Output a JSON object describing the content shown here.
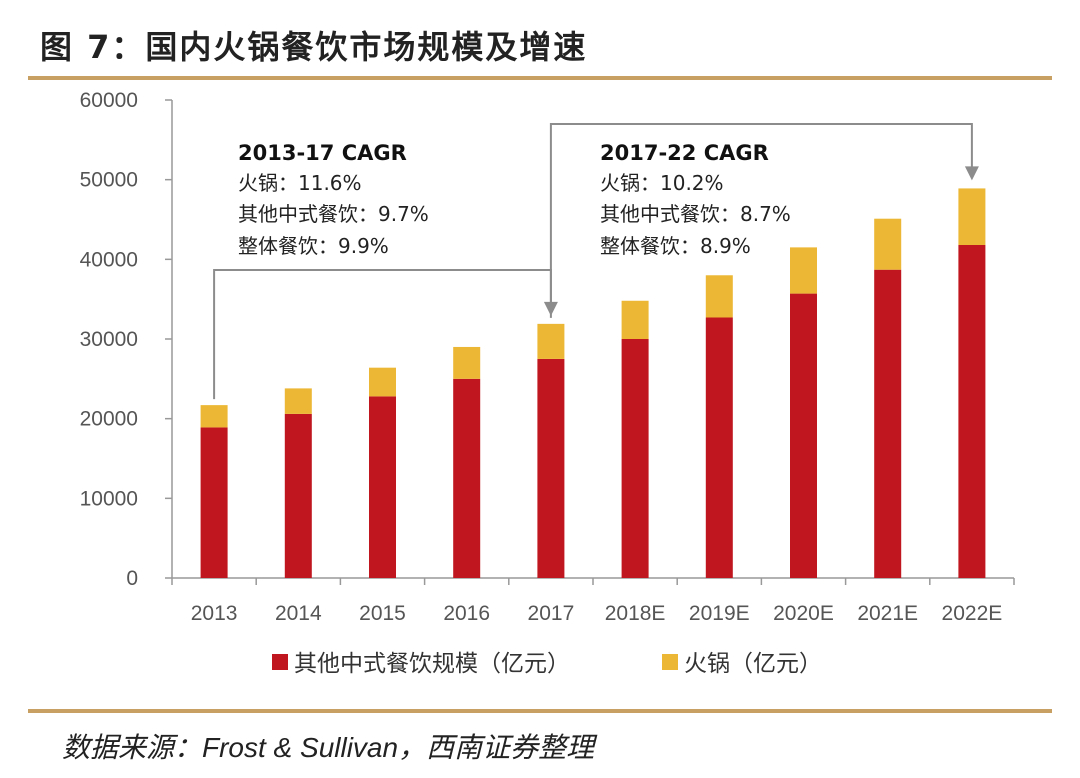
{
  "title": "图 7：国内火锅餐饮市场规模及增速",
  "source": "数据来源：Frost & Sullivan，西南证券整理",
  "colors": {
    "other": "#c0161f",
    "hotpot": "#ecb734",
    "axis": "#999999",
    "rule": "#c8a064",
    "arrow": "#8c8c8c"
  },
  "annotations": [
    {
      "head": "2013-17 CAGR",
      "lines": [
        "火锅：11.6%",
        "其他中式餐饮：9.7%",
        "整体餐饮：9.9%"
      ]
    },
    {
      "head": "2017-22 CAGR",
      "lines": [
        "火锅：10.2%",
        "其他中式餐饮：8.7%",
        "整体餐饮：8.9%"
      ]
    }
  ],
  "chart_data": {
    "type": "bar",
    "stacked": true,
    "categories": [
      "2013",
      "2014",
      "2015",
      "2016",
      "2017",
      "2018E",
      "2019E",
      "2020E",
      "2021E",
      "2022E"
    ],
    "series": [
      {
        "name": "其他中式餐饮规模（亿元）",
        "color": "#c0161f",
        "values": [
          18900,
          20600,
          22800,
          25000,
          27500,
          30000,
          32700,
          35700,
          38700,
          41800
        ]
      },
      {
        "name": "火锅（亿元）",
        "color": "#ecb734",
        "values": [
          2800,
          3200,
          3600,
          4000,
          4400,
          4800,
          5300,
          5800,
          6400,
          7100
        ]
      }
    ],
    "yticks": [
      "0",
      "10000",
      "20000",
      "30000",
      "40000",
      "50000",
      "60000"
    ],
    "ylim": [
      0,
      60000
    ],
    "legend": "bottom"
  }
}
